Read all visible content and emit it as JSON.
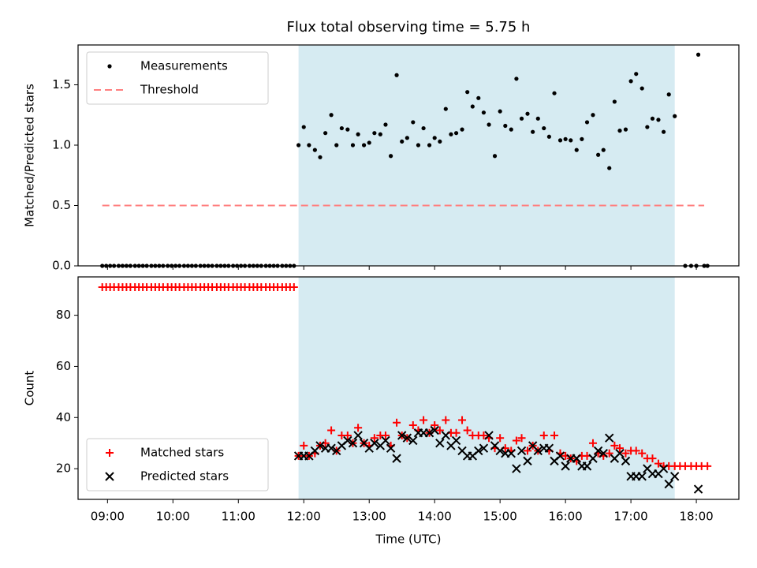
{
  "chart_data": [
    {
      "type": "scatter",
      "title": "Flux total observing time = 5.75 h",
      "ylabel": "Matched/Predicted stars",
      "xlabel": "",
      "ylim": [
        0,
        1.83
      ],
      "xlim": [
        8.55,
        18.65
      ],
      "yticks": [
        0.0,
        0.5,
        1.0,
        1.5
      ],
      "ytick_labels": [
        "0.0",
        "0.5",
        "1.0",
        "1.5"
      ],
      "shaded_span": {
        "start": 11.92,
        "end": 17.67,
        "color": "#add8e6"
      },
      "legend": {
        "position": "top-left",
        "entries": [
          {
            "label": "Measurements",
            "marker": "dot",
            "color": "#000000"
          },
          {
            "label": "Threshold",
            "marker": "dashed-line",
            "color": "#ff7f7f"
          }
        ]
      },
      "threshold": {
        "name": "Threshold",
        "value": 0.5,
        "x_range": [
          8.92,
          18.12
        ],
        "color": "#ff7f7f"
      },
      "series": [
        {
          "name": "Measurements",
          "color": "#000000",
          "x": [
            8.92,
            8.98,
            9.04,
            9.1,
            9.17,
            9.23,
            9.29,
            9.35,
            9.42,
            9.48,
            9.54,
            9.6,
            9.67,
            9.73,
            9.79,
            9.85,
            9.92,
            9.98,
            10.04,
            10.1,
            10.17,
            10.23,
            10.29,
            10.35,
            10.42,
            10.48,
            10.54,
            10.6,
            10.67,
            10.73,
            10.79,
            10.85,
            10.92,
            10.98,
            11.04,
            11.1,
            11.17,
            11.23,
            11.29,
            11.35,
            11.42,
            11.48,
            11.54,
            11.6,
            11.67,
            11.73,
            11.79,
            11.85,
            11.92,
            12.0,
            12.08,
            12.17,
            12.25,
            12.33,
            12.42,
            12.5,
            12.58,
            12.67,
            12.75,
            12.83,
            12.92,
            13.0,
            13.08,
            13.17,
            13.25,
            13.33,
            13.42,
            13.5,
            13.58,
            13.67,
            13.75,
            13.83,
            13.92,
            14.0,
            14.08,
            14.17,
            14.25,
            14.33,
            14.42,
            14.5,
            14.58,
            14.67,
            14.75,
            14.83,
            14.92,
            15.0,
            15.08,
            15.17,
            15.25,
            15.33,
            15.42,
            15.5,
            15.58,
            15.67,
            15.75,
            15.83,
            15.92,
            16.0,
            16.08,
            16.17,
            16.25,
            16.33,
            16.42,
            16.5,
            16.58,
            16.67,
            16.75,
            16.83,
            16.92,
            17.0,
            17.08,
            17.17,
            17.25,
            17.33,
            17.42,
            17.5,
            17.58,
            17.67,
            17.83,
            17.92,
            18.0,
            18.03,
            18.12,
            18.17
          ],
          "y": [
            0,
            0,
            0,
            0,
            0,
            0,
            0,
            0,
            0,
            0,
            0,
            0,
            0,
            0,
            0,
            0,
            0,
            0,
            0,
            0,
            0,
            0,
            0,
            0,
            0,
            0,
            0,
            0,
            0,
            0,
            0,
            0,
            0,
            0,
            0,
            0,
            0,
            0,
            0,
            0,
            0,
            0,
            0,
            0,
            0,
            0,
            0,
            0,
            1.0,
            1.15,
            1.0,
            0.96,
            0.9,
            1.1,
            1.25,
            1.0,
            1.14,
            1.13,
            1.0,
            1.09,
            1.0,
            1.02,
            1.1,
            1.09,
            1.17,
            0.91,
            1.58,
            1.03,
            1.06,
            1.19,
            1.0,
            1.14,
            1.0,
            1.06,
            1.03,
            1.3,
            1.09,
            1.1,
            1.13,
            1.44,
            1.32,
            1.39,
            1.27,
            1.17,
            0.91,
            1.28,
            1.16,
            1.13,
            1.55,
            1.22,
            1.26,
            1.11,
            1.22,
            1.14,
            1.07,
            1.43,
            1.04,
            1.05,
            1.04,
            0.96,
            1.05,
            1.19,
            1.25,
            0.92,
            0.96,
            0.81,
            1.36,
            1.12,
            1.13,
            1.53,
            1.59,
            1.47,
            1.15,
            1.22,
            1.21,
            1.11,
            1.42,
            1.24,
            0,
            0,
            0,
            1.75,
            0,
            0
          ]
        }
      ]
    },
    {
      "type": "scatter",
      "title": "",
      "ylabel": "Count",
      "xlabel": "Time (UTC)",
      "ylim": [
        8,
        95
      ],
      "xlim": [
        8.55,
        18.65
      ],
      "yticks": [
        20,
        40,
        60,
        80
      ],
      "ytick_labels": [
        "20",
        "40",
        "60",
        "80"
      ],
      "xticks": [
        9,
        10,
        11,
        12,
        13,
        14,
        15,
        16,
        17,
        18
      ],
      "xtick_labels": [
        "09:00",
        "10:00",
        "11:00",
        "12:00",
        "13:00",
        "14:00",
        "15:00",
        "16:00",
        "17:00",
        "18:00"
      ],
      "shaded_span": {
        "start": 11.92,
        "end": 17.67,
        "color": "#add8e6"
      },
      "legend": {
        "position": "bottom-left",
        "entries": [
          {
            "label": "Matched stars",
            "marker": "plus",
            "color": "#ff0000"
          },
          {
            "label": "Predicted stars",
            "marker": "x",
            "color": "#000000"
          }
        ]
      },
      "series": [
        {
          "name": "Matched stars",
          "marker": "plus",
          "color": "#ff0000",
          "x": [
            8.92,
            8.98,
            9.04,
            9.1,
            9.17,
            9.23,
            9.29,
            9.35,
            9.42,
            9.48,
            9.54,
            9.6,
            9.67,
            9.73,
            9.79,
            9.85,
            9.92,
            9.98,
            10.04,
            10.1,
            10.17,
            10.23,
            10.29,
            10.35,
            10.42,
            10.48,
            10.54,
            10.6,
            10.67,
            10.73,
            10.79,
            10.85,
            10.92,
            10.98,
            11.04,
            11.1,
            11.17,
            11.23,
            11.29,
            11.35,
            11.42,
            11.48,
            11.54,
            11.6,
            11.67,
            11.73,
            11.79,
            11.85,
            11.92,
            12.0,
            12.08,
            12.17,
            12.25,
            12.33,
            12.42,
            12.5,
            12.58,
            12.67,
            12.75,
            12.83,
            12.92,
            13.0,
            13.08,
            13.17,
            13.25,
            13.33,
            13.42,
            13.5,
            13.58,
            13.67,
            13.75,
            13.83,
            13.92,
            14.0,
            14.08,
            14.17,
            14.25,
            14.33,
            14.42,
            14.5,
            14.58,
            14.67,
            14.75,
            14.83,
            14.92,
            15.0,
            15.08,
            15.17,
            15.25,
            15.33,
            15.42,
            15.5,
            15.58,
            15.67,
            15.75,
            15.83,
            15.92,
            16.0,
            16.08,
            16.17,
            16.25,
            16.33,
            16.42,
            16.5,
            16.58,
            16.67,
            16.75,
            16.83,
            16.92,
            17.0,
            17.08,
            17.17,
            17.25,
            17.33,
            17.42,
            17.5,
            17.58,
            17.67,
            17.75,
            17.83,
            17.92,
            18.0,
            18.08,
            18.17
          ],
          "y": [
            91,
            91,
            91,
            91,
            91,
            91,
            91,
            91,
            91,
            91,
            91,
            91,
            91,
            91,
            91,
            91,
            91,
            91,
            91,
            91,
            91,
            91,
            91,
            91,
            91,
            91,
            91,
            91,
            91,
            91,
            91,
            91,
            91,
            91,
            91,
            91,
            91,
            91,
            91,
            91,
            91,
            91,
            91,
            91,
            91,
            91,
            91,
            91,
            25,
            29,
            25,
            26,
            29,
            30,
            35,
            27,
            33,
            33,
            30,
            36,
            30,
            29,
            32,
            33,
            33,
            29,
            38,
            33,
            32,
            37,
            35,
            39,
            34,
            37,
            35,
            39,
            34,
            34,
            39,
            35,
            33,
            33,
            33,
            32,
            28,
            32,
            28,
            27,
            31,
            32,
            27,
            29,
            27,
            33,
            27,
            33,
            26,
            25,
            24,
            23,
            25,
            25,
            30,
            26,
            25,
            26,
            29,
            28,
            26,
            27,
            27,
            26,
            24,
            24,
            22,
            21,
            21,
            21,
            21,
            21,
            21,
            21,
            21,
            21
          ]
        },
        {
          "name": "Predicted stars",
          "marker": "x",
          "color": "#000000",
          "x": [
            11.92,
            12.0,
            12.08,
            12.17,
            12.25,
            12.33,
            12.42,
            12.5,
            12.58,
            12.67,
            12.75,
            12.83,
            12.92,
            13.0,
            13.08,
            13.17,
            13.25,
            13.33,
            13.42,
            13.5,
            13.58,
            13.67,
            13.75,
            13.83,
            13.92,
            14.0,
            14.08,
            14.17,
            14.25,
            14.33,
            14.42,
            14.5,
            14.58,
            14.67,
            14.75,
            14.83,
            14.92,
            15.0,
            15.08,
            15.17,
            15.25,
            15.33,
            15.42,
            15.5,
            15.58,
            15.67,
            15.75,
            15.83,
            15.92,
            16.0,
            16.08,
            16.17,
            16.25,
            16.33,
            16.42,
            16.5,
            16.58,
            16.67,
            16.75,
            16.83,
            16.92,
            17.0,
            17.08,
            17.17,
            17.25,
            17.33,
            17.42,
            17.5,
            17.58,
            17.67,
            18.03
          ],
          "y": [
            25,
            25,
            25,
            27,
            29,
            28,
            28,
            27,
            29,
            31,
            30,
            33,
            30,
            28,
            30,
            29,
            31,
            28,
            24,
            33,
            32,
            31,
            34,
            34,
            34,
            35,
            30,
            33,
            29,
            31,
            27,
            25,
            25,
            27,
            28,
            33,
            29,
            27,
            26,
            26,
            20,
            27,
            23,
            29,
            27,
            28,
            28,
            23,
            25,
            21,
            24,
            24,
            21,
            21,
            24,
            27,
            26,
            32,
            24,
            26,
            23,
            17,
            17,
            17,
            20,
            18,
            18,
            20,
            14,
            17,
            12
          ]
        }
      ]
    }
  ]
}
